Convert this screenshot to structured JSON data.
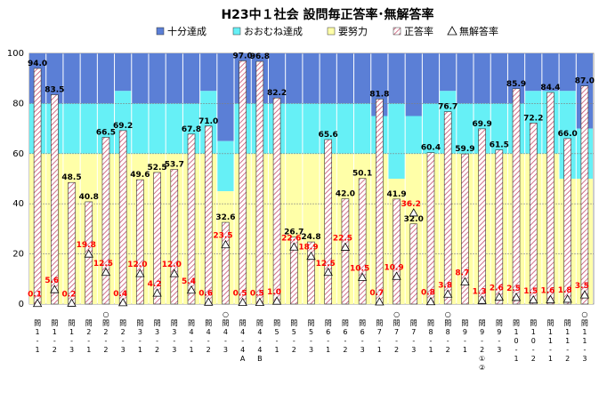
{
  "chart_data": {
    "type": "bar",
    "title": "H23中１社会 設問毎正答率･無解答率",
    "ylim": [
      0,
      100
    ],
    "yticks": [
      0,
      20,
      40,
      60,
      80,
      100
    ],
    "legend": {
      "placement": "top",
      "entries": [
        "十分達成",
        "おおむね達成",
        "要努力",
        "正答率",
        "無解答率"
      ]
    },
    "colors": {
      "juubun": "#5b7fd6",
      "oomune": "#66f0f6",
      "youdoryoku": "#ffffa8",
      "seitou_hatch": "#c8506e",
      "noans_label": "#ff0000"
    },
    "categories": [
      "問1-1",
      "問1-2",
      "問1-3",
      "問2-1",
      "○問2-2",
      "問2-3",
      "問3-1",
      "問3-2",
      "問3-3",
      "問4-1",
      "問4-2",
      "○問4-3",
      "問4-4A",
      "問4-4B",
      "問5-1",
      "問5-2",
      "問5-3",
      "問6-1",
      "問6-2",
      "問6-3",
      "問7-1",
      "○問7-2",
      "問7-3",
      "問8-1",
      "○問8-2",
      "問9-1",
      "問9-2①②",
      "問9-3",
      "問10-1",
      "問10-2",
      "問11-1",
      "問11-2",
      "○問11-3"
    ],
    "category_lines": [
      [
        "問",
        "1",
        "-",
        "1"
      ],
      [
        "問",
        "1",
        "-",
        "2"
      ],
      [
        "問",
        "1",
        "-",
        "3"
      ],
      [
        "問",
        "2",
        "-",
        "1"
      ],
      [
        "○",
        "問",
        "2",
        "-",
        "2"
      ],
      [
        "問",
        "2",
        "-",
        "3"
      ],
      [
        "問",
        "3",
        "-",
        "1"
      ],
      [
        "問",
        "3",
        "-",
        "2"
      ],
      [
        "問",
        "3",
        "-",
        "3"
      ],
      [
        "問",
        "4",
        "-",
        "1"
      ],
      [
        "問",
        "4",
        "-",
        "2"
      ],
      [
        "○",
        "問",
        "4",
        "-",
        "3"
      ],
      [
        "問",
        "4",
        "-",
        "4",
        "A"
      ],
      [
        "問",
        "4",
        "-",
        "4",
        "B"
      ],
      [
        "問",
        "5",
        "-",
        "1"
      ],
      [
        "問",
        "5",
        "-",
        "2"
      ],
      [
        "問",
        "5",
        "-",
        "3"
      ],
      [
        "問",
        "6",
        "-",
        "1"
      ],
      [
        "問",
        "6",
        "-",
        "2"
      ],
      [
        "問",
        "6",
        "-",
        "3"
      ],
      [
        "問",
        "7",
        "-",
        "1"
      ],
      [
        "○",
        "問",
        "7",
        "-",
        "2"
      ],
      [
        "問",
        "7",
        "-",
        "3"
      ],
      [
        "問",
        "8",
        "-",
        "1"
      ],
      [
        "○",
        "問",
        "8",
        "-",
        "2"
      ],
      [
        "問",
        "9",
        "-",
        "1"
      ],
      [
        "問",
        "9",
        "-",
        "2",
        "①",
        "②"
      ],
      [
        "問",
        "9",
        "-",
        "3"
      ],
      [
        "問",
        "1",
        "0",
        "-",
        "1"
      ],
      [
        "問",
        "1",
        "0",
        "-",
        "2"
      ],
      [
        "問",
        "1",
        "1",
        "-",
        "1"
      ],
      [
        "問",
        "1",
        "1",
        "-",
        "2"
      ],
      [
        "○",
        "問",
        "1",
        "1",
        "-",
        "3"
      ]
    ],
    "series": [
      {
        "name": "正答率",
        "values": [
          94.0,
          83.5,
          48.5,
          40.8,
          66.5,
          69.2,
          49.6,
          52.5,
          53.7,
          67.8,
          71.0,
          32.6,
          97.0,
          96.8,
          82.2,
          26.7,
          24.8,
          65.6,
          42.0,
          50.1,
          81.8,
          41.9,
          32.0,
          60.4,
          76.7,
          59.9,
          69.9,
          61.5,
          85.9,
          72.2,
          84.4,
          66.0,
          87.0
        ],
        "labels": [
          "94.0",
          "83.5",
          "48.5",
          "40.8",
          "66.5",
          "69.2",
          "49.6",
          "52.5",
          "53.7",
          "67.8",
          "71.0",
          "32.6",
          "97.0",
          "96.8",
          "82.2",
          "26.7",
          "24.8",
          "65.6",
          "42.0",
          "50.1",
          "81.8",
          "41.9",
          "32.0",
          "60.4",
          "76.7",
          "59.9",
          "69.9",
          "61.5",
          "85.9",
          "72.2",
          "84.4",
          "66.0",
          "87.0"
        ]
      },
      {
        "name": "無解答率",
        "values": [
          0.1,
          5.6,
          0.2,
          19.8,
          12.5,
          0.4,
          12.0,
          4.2,
          12.0,
          5.4,
          0.6,
          23.5,
          0.5,
          0.5,
          1.0,
          22.6,
          18.9,
          12.5,
          22.5,
          10.5,
          0.7,
          10.9,
          36.2,
          0.8,
          3.8,
          8.7,
          1.3,
          2.6,
          2.5,
          1.5,
          1.6,
          1.8,
          3.5
        ],
        "labels": [
          "0.1",
          "5.6",
          "0.2",
          "19.8",
          "12.5",
          "0.4",
          "12.0",
          "4.2",
          "12.0",
          "5.4",
          "0.6",
          "23.5",
          "0.5",
          "0.5",
          "1.0",
          "22.6",
          "18.9",
          "12.5",
          "22.5",
          "10.5",
          "0.7",
          "10.9",
          "36.2",
          "0.8",
          "3.8",
          "8.7",
          "1.3",
          "2.6",
          "2.5",
          "1.5",
          "1.6",
          "1.8",
          "3.5"
        ]
      }
    ],
    "bands": {
      "youdoryoku_top": [
        60,
        60,
        60,
        60,
        60,
        60,
        60,
        60,
        60,
        60,
        60,
        45,
        60,
        60,
        60,
        60,
        60,
        60,
        60,
        60,
        60,
        50,
        60,
        60,
        60,
        60,
        60,
        60,
        60,
        60,
        60,
        50,
        50
      ],
      "oomune_top": [
        80,
        80,
        80,
        80,
        80,
        85,
        80,
        80,
        80,
        80,
        85,
        65,
        80,
        80,
        80,
        80,
        80,
        80,
        80,
        80,
        75,
        80,
        75,
        80,
        85,
        80,
        80,
        80,
        80,
        85,
        85,
        85,
        70
      ]
    }
  }
}
